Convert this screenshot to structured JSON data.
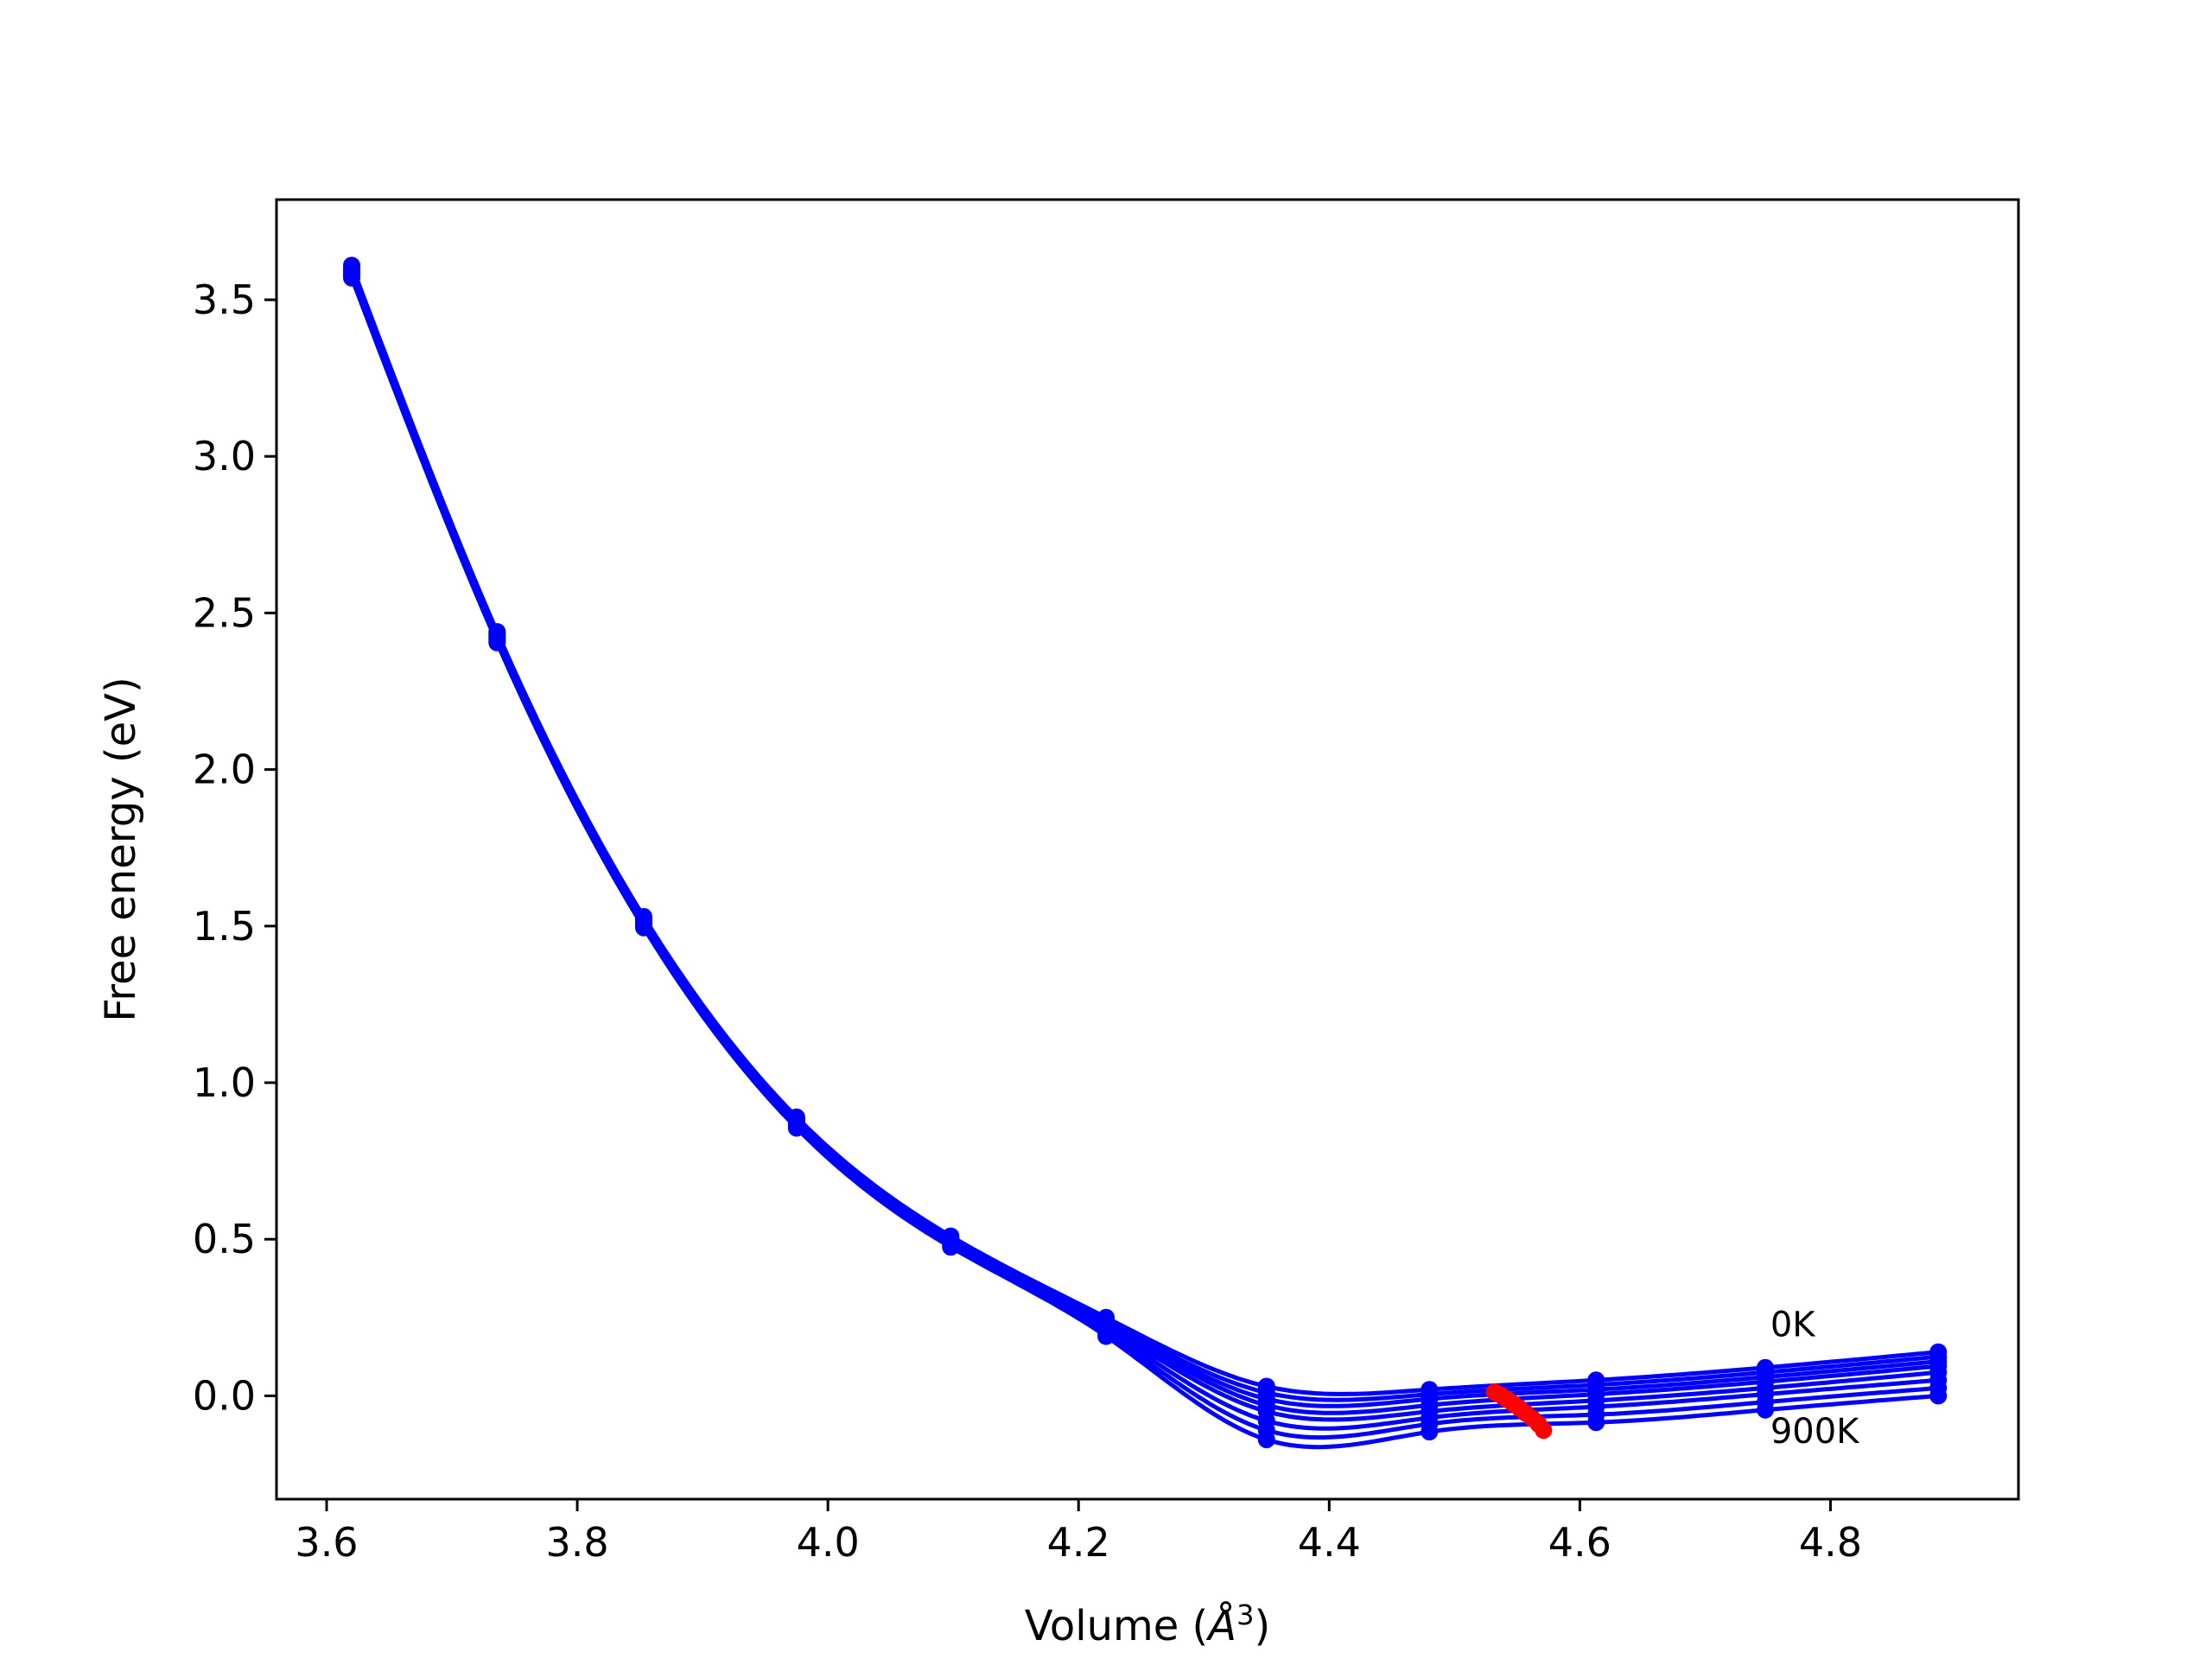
{
  "chart_data": {
    "type": "line",
    "title": "",
    "xlabel": "Volume (",
    "xlabel_unit": "Å",
    "xlabel_exp": "3",
    "xlabel_close": ")",
    "ylabel": "Free energy (eV)",
    "xlim": [
      3.56,
      4.95
    ],
    "ylim": [
      -0.33,
      3.82
    ],
    "grid": false,
    "x_ticks": [
      3.6,
      3.8,
      4.0,
      4.2,
      4.4,
      4.6,
      4.8
    ],
    "x_tick_labels": [
      "3.6",
      "3.8",
      "4.0",
      "4.2",
      "4.4",
      "4.6",
      "4.8"
    ],
    "y_ticks": [
      0.0,
      0.5,
      1.0,
      1.5,
      2.0,
      2.5,
      3.0,
      3.5
    ],
    "y_tick_labels": [
      "0.0",
      "0.5",
      "1.0",
      "1.5",
      "2.0",
      "2.5",
      "3.0",
      "3.5"
    ],
    "volumes": [
      3.62,
      3.736,
      3.853,
      3.975,
      4.098,
      4.222,
      4.35,
      4.48,
      4.613,
      4.748,
      4.886
    ],
    "series": [
      {
        "values": [
          3.61,
          2.44,
          1.53,
          0.89,
          0.51,
          0.25,
          0.03,
          0.02,
          0.05,
          0.09,
          0.14
        ]
      },
      {
        "values": [
          3.6,
          2.435,
          1.525,
          0.885,
          0.505,
          0.24,
          0.01,
          0.005,
          0.035,
          0.075,
          0.125
        ]
      },
      {
        "values": [
          3.595,
          2.43,
          1.52,
          0.88,
          0.5,
          0.235,
          -0.01,
          -0.01,
          0.02,
          0.06,
          0.11
        ]
      },
      {
        "values": [
          3.59,
          2.425,
          1.515,
          0.875,
          0.495,
          0.23,
          -0.03,
          -0.03,
          0.005,
          0.045,
          0.095
        ]
      },
      {
        "values": [
          3.585,
          2.42,
          1.51,
          0.87,
          0.49,
          0.22,
          -0.05,
          -0.05,
          -0.015,
          0.025,
          0.075
        ]
      },
      {
        "values": [
          3.58,
          2.415,
          1.505,
          0.865,
          0.485,
          0.21,
          -0.08,
          -0.07,
          -0.035,
          0.005,
          0.05
        ]
      },
      {
        "values": [
          3.575,
          2.41,
          1.5,
          0.86,
          0.48,
          0.2,
          -0.11,
          -0.09,
          -0.06,
          -0.02,
          0.025
        ]
      },
      {
        "values": [
          3.57,
          2.405,
          1.495,
          0.855,
          0.475,
          0.19,
          -0.14,
          -0.115,
          -0.085,
          -0.045,
          0.0
        ]
      }
    ],
    "minimum_path": {
      "color": "#ff0000",
      "x": [
        4.532,
        4.537,
        4.542,
        4.547,
        4.552,
        4.557,
        4.562,
        4.567,
        4.571
      ],
      "y": [
        0.012,
        0.002,
        -0.012,
        -0.026,
        -0.04,
        -0.056,
        -0.072,
        -0.09,
        -0.11
      ]
    },
    "series_color": "#0000ff",
    "annotations": [
      {
        "text": "0K",
        "x": 4.752,
        "y": 0.19
      },
      {
        "text": "900K",
        "x": 4.752,
        "y": -0.15
      }
    ]
  }
}
